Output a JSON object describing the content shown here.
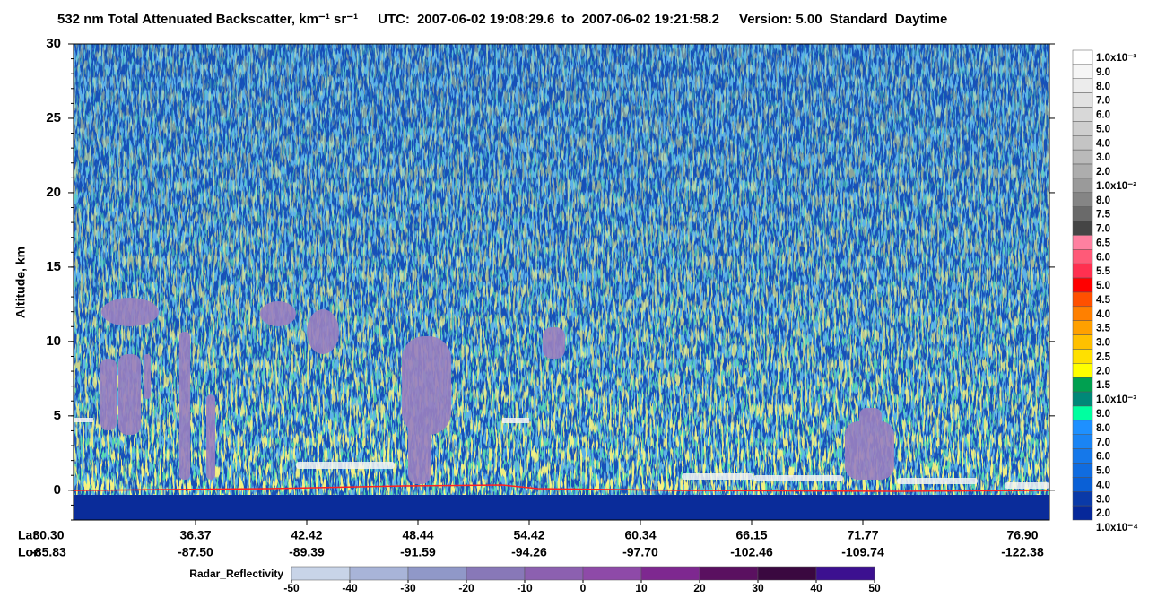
{
  "chart_data": {
    "type": "curtain",
    "title": "532 nm Total Attenuated Backscatter, km⁻¹ sr⁻¹",
    "utc_label": "UTC:",
    "start_time": "2007-06-02 19:08:29.6",
    "range_word": "to",
    "end_time": "2007-06-02 19:21:58.2",
    "version": "Version: 5.00",
    "mode": "Standard  Daytime",
    "ylabel": "Altitude, km",
    "ylim": [
      -2,
      30
    ],
    "yticks": [
      0,
      5,
      10,
      15,
      20,
      25,
      30
    ],
    "lat_label": "Lat",
    "lon_label": "Lon",
    "lat": [
      {
        "value": 30.3,
        "label": "30.30"
      },
      36.37,
      42.42,
      48.44,
      54.42,
      60.34,
      66.15,
      71.77,
      {
        "value": 76.9,
        "label": "76.90"
      }
    ],
    "lon": [
      -85.83,
      {
        "value": -87.5,
        "label": "-87.50"
      },
      -89.39,
      -91.59,
      -94.26,
      {
        "value": -97.7,
        "label": "-97.70"
      },
      -102.46,
      -109.74,
      -122.38
    ],
    "colorbar": {
      "labels": [
        "1.0x10⁻¹",
        "9.0",
        "8.0",
        "7.0",
        "6.0",
        "5.0",
        "4.0",
        "3.0",
        "2.0",
        "1.0x10⁻²",
        "8.0",
        "7.5",
        "7.0",
        "6.5",
        "6.0",
        "5.5",
        "5.0",
        "4.5",
        "4.0",
        "3.5",
        "3.0",
        "2.5",
        "2.0",
        "1.5",
        "1.0x10⁻³",
        "9.0",
        "8.0",
        "7.0",
        "6.0",
        "5.0",
        "4.0",
        "3.0",
        "2.0",
        "1.0x10⁻⁴"
      ],
      "colors": [
        "#ffffff",
        "#f5f5f5",
        "#ececec",
        "#e2e2e2",
        "#d8d8d8",
        "#cecece",
        "#c4c4c4",
        "#bababa",
        "#adadad",
        "#9a9a9a",
        "#858585",
        "#6a6a6a",
        "#454545",
        "#ff80a0",
        "#ff5a78",
        "#ff3050",
        "#ff0000",
        "#ff5000",
        "#ff8000",
        "#ffa000",
        "#ffc000",
        "#ffe000",
        "#ffff00",
        "#00a050",
        "#008878",
        "#00ffa0",
        "#1e90ff",
        "#1a84f4",
        "#1578ea",
        "#106ce0",
        "#0a60d6",
        "#0a3aa8",
        "#06289a"
      ]
    },
    "radar": {
      "label": "Radar_Reflectivity",
      "ticks": [
        -50,
        -40,
        -30,
        -20,
        -10,
        0,
        10,
        20,
        30,
        40,
        50
      ],
      "colors": [
        "#c8d4e8",
        "#a8b4d8",
        "#9098c8",
        "#8878b8",
        "#8c60b0",
        "#8e4aa8",
        "#7e2890",
        "#5a1060",
        "#3a0840",
        "#3c1090"
      ]
    }
  }
}
